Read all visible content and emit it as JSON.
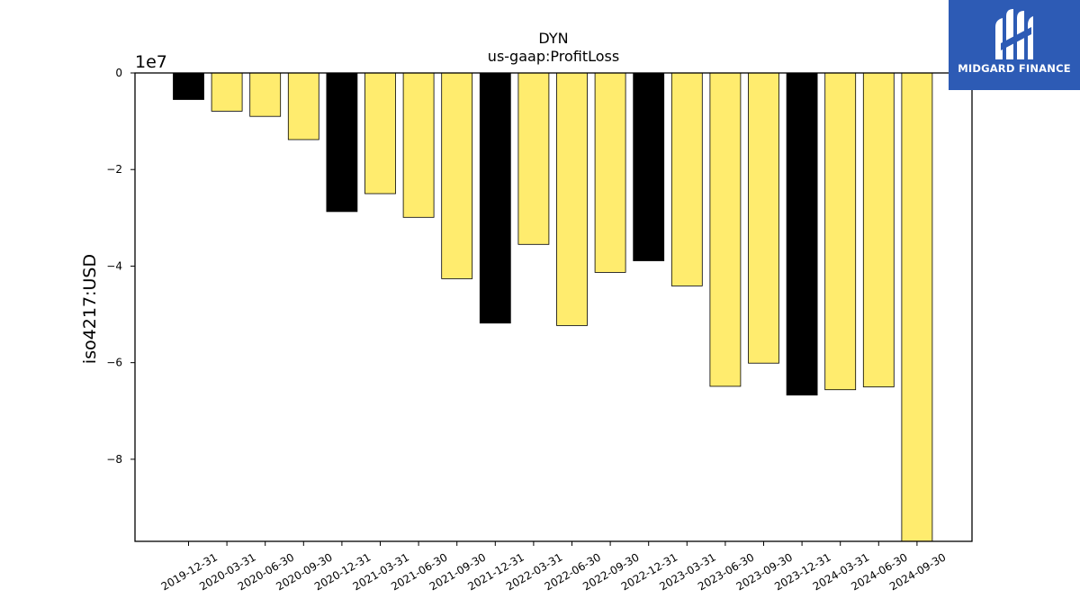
{
  "chart_data": {
    "type": "bar",
    "title": "DYN",
    "subtitle": "us-gaap:ProfitLoss",
    "ylabel": "iso4217:USD",
    "xlabel": "",
    "offset_label": "1e7",
    "ylim": [
      -97000000,
      0
    ],
    "yticks": [
      0,
      -20000000,
      -40000000,
      -60000000,
      -80000000
    ],
    "ytick_labels": [
      "0",
      "−2",
      "−4",
      "−6",
      "−8"
    ],
    "grid": false,
    "categories": [
      "2019-12-31",
      "2020-03-31",
      "2020-06-30",
      "2020-09-30",
      "2020-12-31",
      "2021-03-31",
      "2021-06-30",
      "2021-09-30",
      "2021-12-31",
      "2022-03-31",
      "2022-06-30",
      "2022-09-30",
      "2022-12-31",
      "2023-03-31",
      "2023-06-30",
      "2023-09-30",
      "2023-12-31",
      "2024-03-31",
      "2024-06-30",
      "2024-09-30"
    ],
    "values": [
      -5500000,
      -7900000,
      -9000000,
      -13800000,
      -28700000,
      -25000000,
      -29900000,
      -42600000,
      -51800000,
      -35500000,
      -52300000,
      -41300000,
      -38900000,
      -44100000,
      -64900000,
      -60100000,
      -66700000,
      -65600000,
      -65000000,
      -97000000
    ],
    "colors": [
      "#000000",
      "#ffec6e",
      "#ffec6e",
      "#ffec6e",
      "#000000",
      "#ffec6e",
      "#ffec6e",
      "#ffec6e",
      "#000000",
      "#ffec6e",
      "#ffec6e",
      "#ffec6e",
      "#000000",
      "#ffec6e",
      "#ffec6e",
      "#ffec6e",
      "#000000",
      "#ffec6e",
      "#ffec6e",
      "#ffec6e"
    ]
  },
  "logo": {
    "text": "MIDGARD FINANCE",
    "background": "#2d5bb5"
  }
}
